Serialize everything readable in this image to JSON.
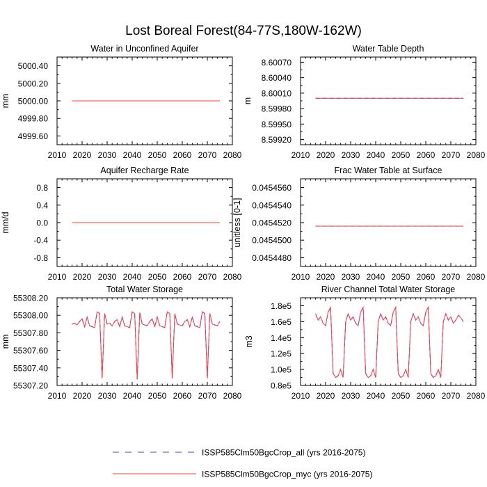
{
  "title": "Lost Boreal Forest(84-77S,180W-162W)",
  "colors": {
    "series_all": "#3c3cf0",
    "series_myc": "#ff3c3c",
    "overlap": "#7a1fb0"
  },
  "legend": {
    "placement": "bottom-center",
    "entries": [
      {
        "label": "ISSP585Clm50BgcCrop_all (yrs 2016-2075)",
        "style": "dashed",
        "color": "#3c3cf0"
      },
      {
        "label": "ISSP585Clm50BgcCrop_myc (yrs 2016-2075)",
        "style": "solid",
        "color": "#ff3c3c"
      }
    ]
  },
  "chart_data": [
    {
      "type": "line",
      "title": "Water in Unconfined Aquifer",
      "ylabel": "mm",
      "xlim": [
        2010,
        2080
      ],
      "ylim": [
        4999.5,
        5000.5
      ],
      "xticks": [
        2010,
        2020,
        2030,
        2040,
        2050,
        2060,
        2070,
        2080
      ],
      "yticks": [
        4999.6,
        4999.8,
        5000.0,
        5000.2,
        5000.4
      ],
      "ytick_labels": [
        "4999.60",
        "4999.80",
        "5000.00",
        "5000.20",
        "5000.40"
      ],
      "x_start": 2016,
      "series": [
        {
          "name": "ISSP585Clm50BgcCrop_all (yrs 2016-2075)",
          "constant": 5000.0
        },
        {
          "name": "ISSP585Clm50BgcCrop_myc (yrs 2016-2075)",
          "constant": 5000.0
        }
      ]
    },
    {
      "type": "line",
      "title": "Water Table Depth",
      "ylabel": "m",
      "xlim": [
        2010,
        2080
      ],
      "ylim": [
        8.5991,
        8.6008
      ],
      "xticks": [
        2010,
        2020,
        2030,
        2040,
        2050,
        2060,
        2070,
        2080
      ],
      "yticks": [
        8.5992,
        8.5995,
        8.5998,
        8.6001,
        8.6004,
        8.6007
      ],
      "ytick_labels": [
        "8.59920",
        "8.59950",
        "8.59980",
        "8.60010",
        "8.60040",
        "8.60070"
      ],
      "x_start": 2016,
      "series": [
        {
          "name": "ISSP585Clm50BgcCrop_all (yrs 2016-2075)",
          "constant": 8.6
        },
        {
          "name": "ISSP585Clm50BgcCrop_myc (yrs 2016-2075)",
          "constant": 8.6
        }
      ]
    },
    {
      "type": "line",
      "title": "Aquifer Recharge Rate",
      "ylabel": "mm/d",
      "xlim": [
        2010,
        2080
      ],
      "ylim": [
        -1.0,
        1.0
      ],
      "xticks": [
        2010,
        2020,
        2030,
        2040,
        2050,
        2060,
        2070,
        2080
      ],
      "yticks": [
        -0.8,
        -0.4,
        0.0,
        0.4,
        0.8
      ],
      "ytick_labels": [
        "-0.8",
        "-0.4",
        "0.0",
        "0.4",
        "0.8"
      ],
      "x_start": 2016,
      "series": [
        {
          "name": "ISSP585Clm50BgcCrop_all (yrs 2016-2075)",
          "constant": 0.0
        },
        {
          "name": "ISSP585Clm50BgcCrop_myc (yrs 2016-2075)",
          "constant": 0.0
        }
      ]
    },
    {
      "type": "line",
      "title": "Frac Water Table at Surface",
      "ylabel": "unitless [0-1]",
      "xlim": [
        2010,
        2080
      ],
      "ylim": [
        0.045447,
        0.045457
      ],
      "xticks": [
        2010,
        2020,
        2030,
        2040,
        2050,
        2060,
        2070,
        2080
      ],
      "yticks": [
        0.045448,
        0.04545,
        0.045452,
        0.045454,
        0.045456
      ],
      "ytick_labels": [
        "0.0454480",
        "0.0454500",
        "0.0454520",
        "0.0454540",
        "0.0454560"
      ],
      "x_start": 2016,
      "series": [
        {
          "name": "ISSP585Clm50BgcCrop_all (yrs 2016-2075)",
          "constant": 0.0454516
        },
        {
          "name": "ISSP585Clm50BgcCrop_myc (yrs 2016-2075)",
          "constant": 0.0454516
        }
      ]
    },
    {
      "type": "line",
      "title": "Total Water Storage",
      "ylabel": "mm",
      "xlim": [
        2010,
        2080
      ],
      "ylim": [
        55307.2,
        55308.2
      ],
      "xticks": [
        2010,
        2020,
        2030,
        2040,
        2050,
        2060,
        2070,
        2080
      ],
      "yticks": [
        55307.2,
        55307.4,
        55307.6,
        55307.8,
        55308.0,
        55308.2
      ],
      "ytick_labels": [
        "55307.20",
        "55307.40",
        "55307.60",
        "55307.80",
        "55308.00",
        "55308.20"
      ],
      "x_start": 2016,
      "series": [
        {
          "name": "ISSP585Clm50BgcCrop_all (yrs 2016-2075)",
          "values": [
            55307.9,
            55307.91,
            55307.89,
            55307.93,
            55307.96,
            55307.87,
            55307.98,
            55307.88,
            55307.87,
            55307.86,
            55308.04,
            55308.02,
            55307.28,
            55308.02,
            55307.9,
            55307.91,
            55307.88,
            55307.93,
            55307.95,
            55307.87,
            55307.98,
            55307.88,
            55307.87,
            55307.86,
            55308.04,
            55308.02,
            55307.27,
            55308.03,
            55307.9,
            55307.89,
            55307.88,
            55307.93,
            55307.96,
            55307.87,
            55307.98,
            55307.88,
            55307.87,
            55307.86,
            55308.04,
            55308.02,
            55307.28,
            55308.02,
            55307.9,
            55307.89,
            55307.88,
            55307.93,
            55307.95,
            55307.87,
            55307.98,
            55307.88,
            55307.87,
            55307.86,
            55308.04,
            55308.02,
            55307.28,
            55308.02,
            55307.9,
            55307.89,
            55307.88,
            55307.93
          ]
        },
        {
          "name": "ISSP585Clm50BgcCrop_myc (yrs 2016-2075)",
          "values": [
            55307.9,
            55307.91,
            55307.89,
            55307.93,
            55307.96,
            55307.87,
            55307.98,
            55307.88,
            55307.87,
            55307.86,
            55308.04,
            55308.02,
            55307.28,
            55308.02,
            55307.9,
            55307.91,
            55307.88,
            55307.93,
            55307.95,
            55307.87,
            55307.98,
            55307.88,
            55307.87,
            55307.86,
            55308.04,
            55308.02,
            55307.27,
            55308.03,
            55307.9,
            55307.89,
            55307.88,
            55307.93,
            55307.96,
            55307.87,
            55307.98,
            55307.88,
            55307.87,
            55307.86,
            55308.04,
            55308.02,
            55307.28,
            55308.02,
            55307.9,
            55307.89,
            55307.88,
            55307.93,
            55307.95,
            55307.87,
            55307.98,
            55307.88,
            55307.87,
            55307.86,
            55308.04,
            55308.02,
            55307.28,
            55308.02,
            55307.9,
            55307.89,
            55307.88,
            55307.93
          ]
        }
      ]
    },
    {
      "type": "line",
      "title": "River Channel Total Water Storage",
      "ylabel": "m3",
      "xlim": [
        2010,
        2080
      ],
      "ylim": [
        80000,
        190000
      ],
      "xticks": [
        2010,
        2020,
        2030,
        2040,
        2050,
        2060,
        2070,
        2080
      ],
      "yticks": [
        80000,
        100000,
        120000,
        140000,
        160000,
        180000
      ],
      "ytick_labels": [
        "0.8e5",
        "1.0e5",
        "1.2e5",
        "1.4e5",
        "1.6e5",
        "1.8e5"
      ],
      "x_start": 2016,
      "series": [
        {
          "name": "ISSP585Clm50BgcCrop_all (yrs 2016-2075)",
          "values": [
            170000,
            162000,
            166000,
            158000,
            155000,
            172000,
            178000,
            95000,
            90000,
            92000,
            100000,
            90000,
            160000,
            170000,
            162000,
            166000,
            158000,
            155000,
            172000,
            178000,
            95000,
            90000,
            92000,
            100000,
            90000,
            160000,
            170000,
            162000,
            166000,
            158000,
            155000,
            172000,
            178000,
            95000,
            90000,
            92000,
            100000,
            90000,
            160000,
            170000,
            162000,
            166000,
            158000,
            155000,
            172000,
            178000,
            95000,
            90000,
            92000,
            100000,
            90000,
            160000,
            170000,
            162000,
            166000,
            158000,
            162000,
            168000,
            165000,
            160000
          ]
        },
        {
          "name": "ISSP585Clm50BgcCrop_myc (yrs 2016-2075)",
          "values": [
            170000,
            162000,
            166000,
            158000,
            155000,
            172000,
            178000,
            95000,
            90000,
            92000,
            100000,
            90000,
            160000,
            170000,
            162000,
            166000,
            158000,
            155000,
            172000,
            178000,
            95000,
            90000,
            92000,
            100000,
            90000,
            160000,
            170000,
            162000,
            166000,
            158000,
            155000,
            172000,
            178000,
            95000,
            90000,
            92000,
            100000,
            90000,
            160000,
            170000,
            162000,
            166000,
            158000,
            155000,
            172000,
            178000,
            95000,
            90000,
            92000,
            100000,
            90000,
            160000,
            170000,
            162000,
            166000,
            158000,
            162000,
            168000,
            165000,
            160000
          ]
        }
      ]
    }
  ]
}
